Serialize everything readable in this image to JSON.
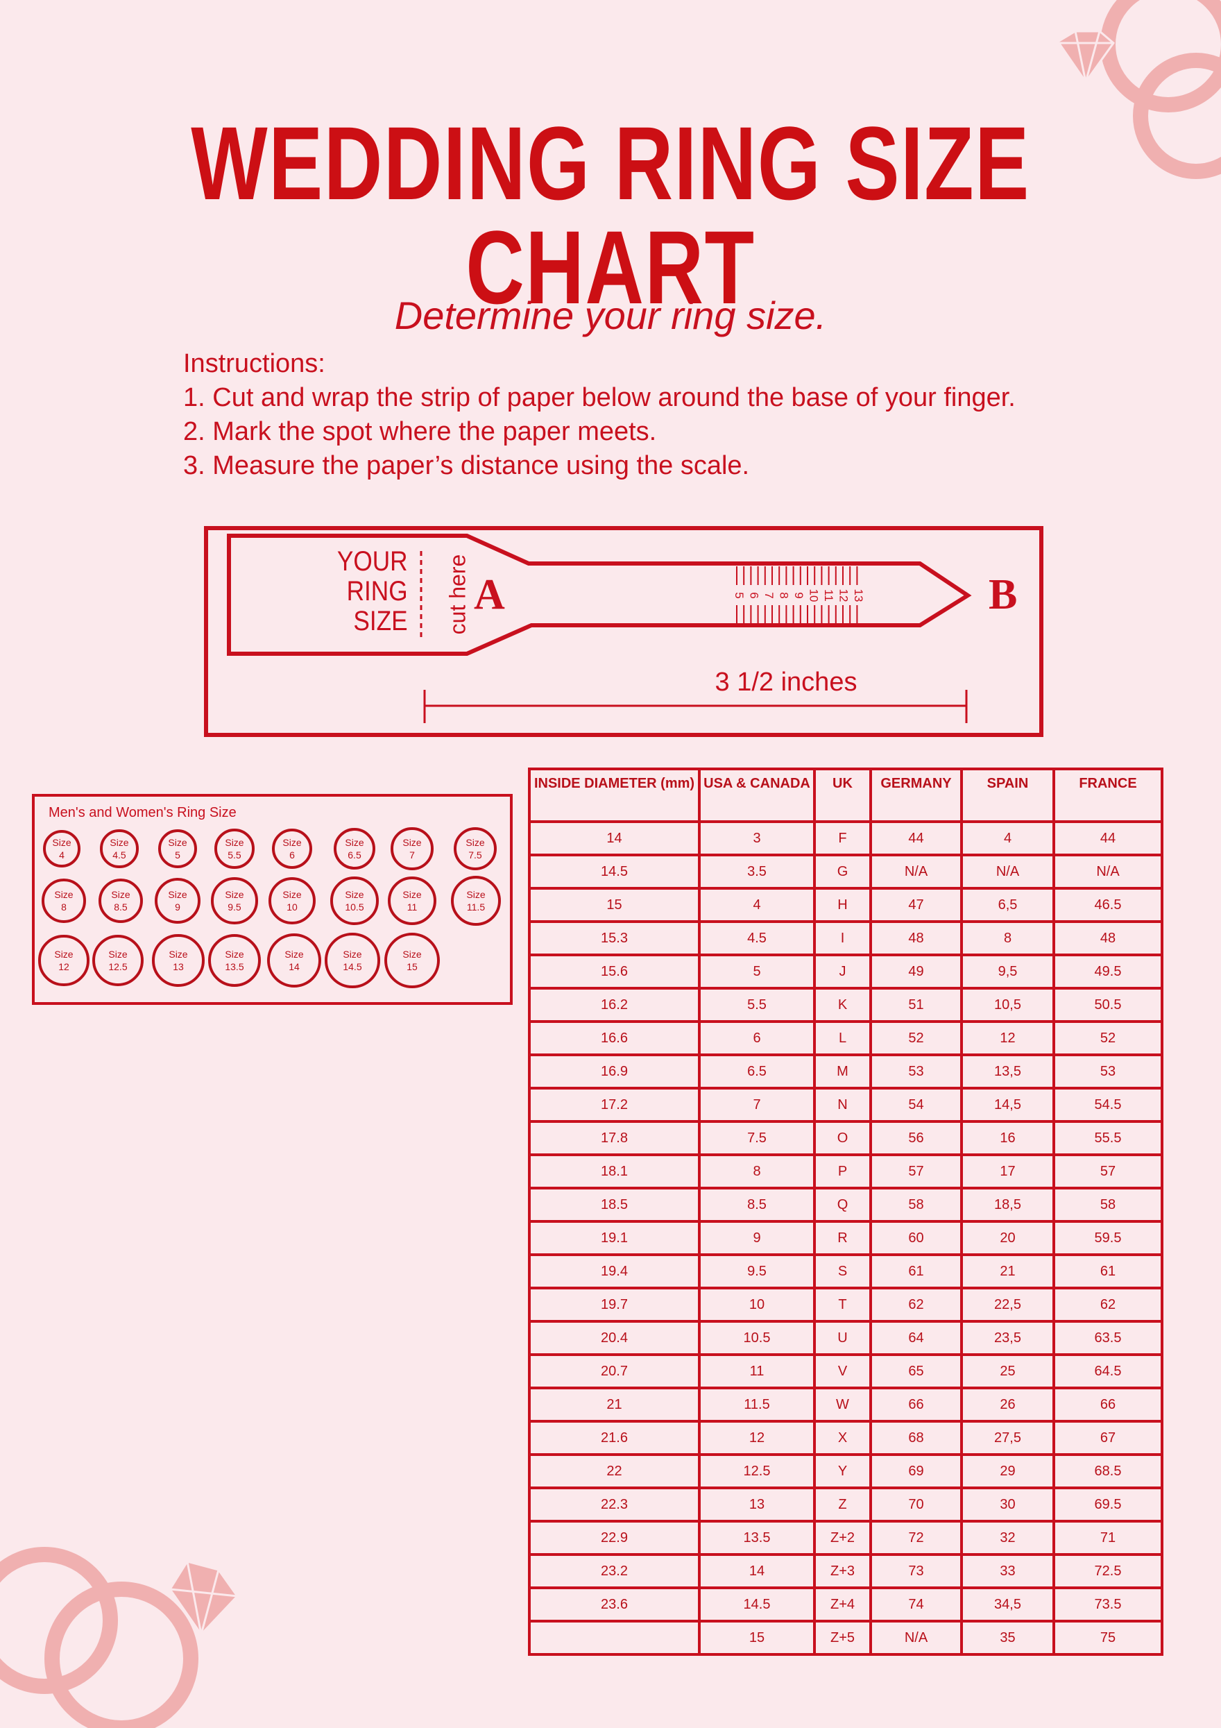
{
  "title": "WEDDING RING SIZE CHART",
  "subtitle": "Determine your ring size.",
  "instructions": {
    "heading": "Instructions:",
    "steps": [
      "1. Cut and wrap the strip of paper below around the base of your finger.",
      "2. Mark the spot where the paper meets.",
      "3. Measure the paper’s distance using the scale."
    ]
  },
  "ruler": {
    "label_lines": [
      "YOUR",
      "RING",
      "SIZE"
    ],
    "cut_label": "cut here",
    "point_a": "A",
    "point_b": "B",
    "scale_numbers": [
      "5",
      "6",
      "7",
      "8",
      "9",
      "10",
      "11",
      "12",
      "13"
    ],
    "length_label": "3 1/2 inches"
  },
  "ring_sizes": {
    "title": "Men's and Women's Ring Size",
    "prefix": "Size",
    "rows": [
      [
        "4",
        "4.5",
        "5",
        "5.5",
        "6",
        "6.5",
        "7",
        "7.5"
      ],
      [
        "8",
        "8.5",
        "9",
        "9.5",
        "10",
        "10.5",
        "11",
        "11.5"
      ],
      [
        "12",
        "12.5",
        "13",
        "13.5",
        "14",
        "14.5",
        "15"
      ]
    ]
  },
  "table": {
    "headers": [
      "INSIDE DIAMETER (mm)",
      "USA & CANADA",
      "UK",
      "GERMANY",
      "SPAIN",
      "FRANCE"
    ],
    "rows": [
      [
        "14",
        "3",
        "F",
        "44",
        "4",
        "44"
      ],
      [
        "14.5",
        "3.5",
        "G",
        "N/A",
        "N/A",
        "N/A"
      ],
      [
        "15",
        "4",
        "H",
        "47",
        "6,5",
        "46.5"
      ],
      [
        "15.3",
        "4.5",
        "I",
        "48",
        "8",
        "48"
      ],
      [
        "15.6",
        "5",
        "J",
        "49",
        "9,5",
        "49.5"
      ],
      [
        "16.2",
        "5.5",
        "K",
        "51",
        "10,5",
        "50.5"
      ],
      [
        "16.6",
        "6",
        "L",
        "52",
        "12",
        "52"
      ],
      [
        "16.9",
        "6.5",
        "M",
        "53",
        "13,5",
        "53"
      ],
      [
        "17.2",
        "7",
        "N",
        "54",
        "14,5",
        "54.5"
      ],
      [
        "17.8",
        "7.5",
        "O",
        "56",
        "16",
        "55.5"
      ],
      [
        "18.1",
        "8",
        "P",
        "57",
        "17",
        "57"
      ],
      [
        "18.5",
        "8.5",
        "Q",
        "58",
        "18,5",
        "58"
      ],
      [
        "19.1",
        "9",
        "R",
        "60",
        "20",
        "59.5"
      ],
      [
        "19.4",
        "9.5",
        "S",
        "61",
        "21",
        "61"
      ],
      [
        "19.7",
        "10",
        "T",
        "62",
        "22,5",
        "62"
      ],
      [
        "20.4",
        "10.5",
        "U",
        "64",
        "23,5",
        "63.5"
      ],
      [
        "20.7",
        "11",
        "V",
        "65",
        "25",
        "64.5"
      ],
      [
        "21",
        "11.5",
        "W",
        "66",
        "26",
        "66"
      ],
      [
        "21.6",
        "12",
        "X",
        "68",
        "27,5",
        "67"
      ],
      [
        "22",
        "12.5",
        "Y",
        "69",
        "29",
        "68.5"
      ],
      [
        "22.3",
        "13",
        "Z",
        "70",
        "30",
        "69.5"
      ],
      [
        "22.9",
        "13.5",
        "Z+2",
        "72",
        "32",
        "71"
      ],
      [
        "23.2",
        "14",
        "Z+3",
        "73",
        "33",
        "72.5"
      ],
      [
        "23.6",
        "14.5",
        "Z+4",
        "74",
        "34,5",
        "73.5"
      ],
      [
        "",
        "15",
        "Z+5",
        "N/A",
        "35",
        "75"
      ]
    ]
  },
  "colors": {
    "accent": "#c8101e",
    "background": "#fbe9ec",
    "decoration": "#f0b0b0"
  },
  "decorations": [
    "ring-with-diamond-icon",
    "ring-with-diamond-icon"
  ]
}
